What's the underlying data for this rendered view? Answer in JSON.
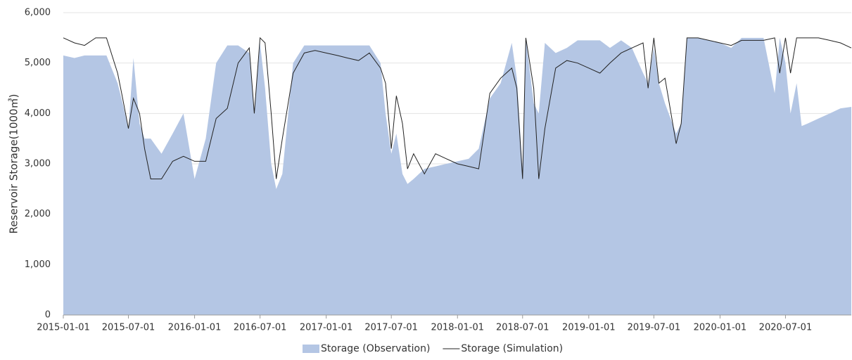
{
  "chart_data": {
    "type": "line",
    "y_label": "Reservoir Storage(1000㎥)",
    "x": [
      "2015-01-01",
      "2015-02-01",
      "2015-03-01",
      "2015-04-01",
      "2015-05-01",
      "2015-06-01",
      "2015-06-15",
      "2015-07-01",
      "2015-07-15",
      "2015-08-01",
      "2015-08-15",
      "2015-09-01",
      "2015-10-01",
      "2015-11-01",
      "2015-12-01",
      "2016-01-01",
      "2016-02-01",
      "2016-03-01",
      "2016-04-01",
      "2016-05-01",
      "2016-06-01",
      "2016-06-15",
      "2016-07-01",
      "2016-07-15",
      "2016-08-01",
      "2016-08-15",
      "2016-09-01",
      "2016-10-01",
      "2016-11-01",
      "2016-12-01",
      "2017-01-01",
      "2017-02-01",
      "2017-03-01",
      "2017-04-01",
      "2017-05-01",
      "2017-06-01",
      "2017-06-15",
      "2017-07-01",
      "2017-07-15",
      "2017-08-01",
      "2017-08-15",
      "2017-09-01",
      "2017-10-01",
      "2017-11-01",
      "2017-12-01",
      "2018-01-01",
      "2018-02-01",
      "2018-03-01",
      "2018-04-01",
      "2018-05-01",
      "2018-06-01",
      "2018-06-15",
      "2018-07-01",
      "2018-07-10",
      "2018-08-01",
      "2018-08-15",
      "2018-09-01",
      "2018-10-01",
      "2018-11-01",
      "2018-12-01",
      "2019-01-01",
      "2019-02-01",
      "2019-03-01",
      "2019-04-01",
      "2019-05-01",
      "2019-06-01",
      "2019-06-15",
      "2019-07-01",
      "2019-07-15",
      "2019-08-01",
      "2019-09-01",
      "2019-09-15",
      "2019-10-01",
      "2019-11-01",
      "2019-12-01",
      "2020-01-01",
      "2020-02-01",
      "2020-03-01",
      "2020-04-01",
      "2020-05-01",
      "2020-06-01",
      "2020-06-15",
      "2020-07-01",
      "2020-07-15",
      "2020-08-01",
      "2020-08-15",
      "2020-09-01",
      "2020-10-01",
      "2020-11-01",
      "2020-12-01",
      "2020-12-31"
    ],
    "series": [
      {
        "name": "Storage (Observation)",
        "type": "area",
        "color": "#b4c6e4",
        "values": [
          5150,
          5100,
          5150,
          5150,
          5150,
          4600,
          4200,
          3700,
          5100,
          3800,
          3500,
          3500,
          3200,
          3600,
          4000,
          2700,
          3500,
          5000,
          5350,
          5350,
          5200,
          4000,
          5400,
          4500,
          3000,
          2500,
          2800,
          5000,
          5350,
          5350,
          5350,
          5350,
          5350,
          5350,
          5350,
          5000,
          4000,
          3200,
          3600,
          2800,
          2600,
          2700,
          2900,
          2950,
          3000,
          3050,
          3100,
          3300,
          4300,
          4600,
          5400,
          4700,
          2900,
          5500,
          4200,
          4000,
          5400,
          5200,
          5300,
          5450,
          5450,
          5450,
          5300,
          5450,
          5300,
          4800,
          4600,
          5300,
          4600,
          4200,
          3600,
          3800,
          5500,
          5500,
          5450,
          5400,
          5300,
          5500,
          5500,
          5500,
          4400,
          5500,
          5000,
          4000,
          4600,
          3750,
          3800,
          3900,
          4000,
          4100,
          4130
        ]
      },
      {
        "name": "Storage (Simulation)",
        "type": "line",
        "color": "#222222",
        "values": [
          5500,
          5400,
          5350,
          5500,
          5500,
          4800,
          4300,
          3700,
          4300,
          4000,
          3300,
          2700,
          2700,
          3050,
          3150,
          3050,
          3050,
          3900,
          4100,
          5000,
          5300,
          4000,
          5500,
          5400,
          4000,
          2700,
          3500,
          4800,
          5200,
          5250,
          5200,
          5150,
          5100,
          5050,
          5200,
          4900,
          4600,
          3300,
          4350,
          3800,
          2900,
          3200,
          2800,
          3200,
          3100,
          3000,
          2950,
          2900,
          4400,
          4700,
          4900,
          4500,
          2700,
          5500,
          4500,
          2700,
          3700,
          4900,
          5050,
          5000,
          4900,
          4800,
          5000,
          5200,
          5300,
          5400,
          4500,
          5500,
          4600,
          4700,
          3400,
          3800,
          5500,
          5500,
          5450,
          5400,
          5350,
          5450,
          5450,
          5450,
          5500,
          4800,
          5500,
          4800,
          5500,
          5500,
          5500,
          5500,
          5450,
          5400,
          5300
        ]
      }
    ],
    "xlim": [
      "2015-01-01",
      "2020-12-31"
    ],
    "xticks": [
      "2015-01-01",
      "2015-07-01",
      "2016-01-01",
      "2016-07-01",
      "2017-01-01",
      "2017-07-01",
      "2018-01-01",
      "2018-07-01",
      "2019-01-01",
      "2019-07-01",
      "2020-01-01",
      "2020-07-01"
    ],
    "ylim": [
      0,
      6000
    ],
    "yticks": [
      0,
      {
        "value": 1000,
        "label": "1,000"
      },
      {
        "value": 2000,
        "label": "2,000"
      },
      {
        "value": 3000,
        "label": "3,000"
      },
      {
        "value": 4000,
        "label": "4,000"
      },
      {
        "value": 5000,
        "label": "5,000"
      },
      {
        "value": 6000,
        "label": "6,000"
      }
    ],
    "grid": true,
    "legend": "bottom"
  }
}
